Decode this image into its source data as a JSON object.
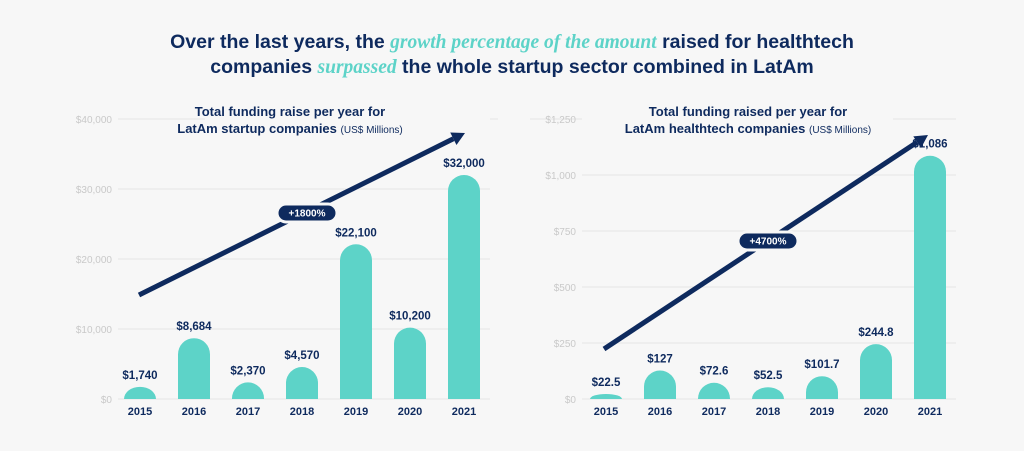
{
  "headline": {
    "line1_a": "Over the last years, the ",
    "line1_em": "growth percentage of the amount",
    "line1_b": " raised for healthtech",
    "line2_a": "companies ",
    "line2_em": "surpassed",
    "line2_b": " the whole startup sector combined in LatAm"
  },
  "colors": {
    "bar": "#5dd3c8",
    "text": "#0e2a5e",
    "arrow": "#0e2a5e",
    "grid": "#e6e6e6",
    "tick": "#c9c9c9"
  },
  "chart_data": [
    {
      "type": "bar",
      "title_line1": "Total funding raise per year for",
      "title_line2": "LatAm startup companies",
      "title_unit": "(US$ Millions)",
      "categories": [
        "2015",
        "2016",
        "2017",
        "2018",
        "2019",
        "2020",
        "2021"
      ],
      "values": [
        1740,
        8684,
        2370,
        4570,
        22100,
        10200,
        32000
      ],
      "data_labels": [
        "$1,740",
        "$8,684",
        "$2,370",
        "$4,570",
        "$22,100",
        "$10,200",
        "$32,000"
      ],
      "ylim": [
        0,
        40000
      ],
      "yticks": [
        0,
        10000,
        20000,
        30000,
        40000
      ],
      "ytick_labels": [
        "$0",
        "$10,000",
        "$20,000",
        "$30,000",
        "$40,000"
      ],
      "grid": true,
      "annotation": "+1800%"
    },
    {
      "type": "bar",
      "title_line1": "Total funding raised per year for",
      "title_line2": "LatAm healthtech companies",
      "title_unit": "(US$ Millions)",
      "categories": [
        "2015",
        "2016",
        "2017",
        "2018",
        "2019",
        "2020",
        "2021"
      ],
      "values": [
        22.5,
        127,
        72.6,
        52.5,
        101.7,
        244.8,
        1086
      ],
      "data_labels": [
        "$22.5",
        "$127",
        "$72.6",
        "$52.5",
        "$101.7",
        "$244.8",
        "$1,086"
      ],
      "ylim": [
        0,
        1250
      ],
      "yticks": [
        0,
        250,
        500,
        750,
        1000,
        1250
      ],
      "ytick_labels": [
        "$0",
        "$250",
        "$500",
        "$750",
        "$1,000",
        "$1,250"
      ],
      "grid": true,
      "annotation": "+4700%"
    }
  ]
}
